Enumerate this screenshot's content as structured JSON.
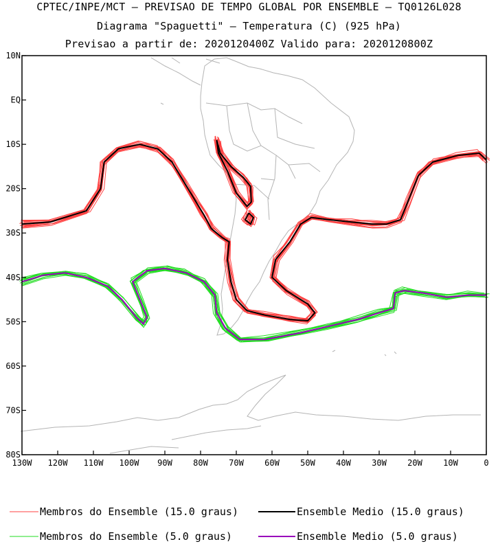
{
  "header": {
    "line1": "CPTEC/INPE/MCT – PREVISAO DE TEMPO GLOBAL POR ENSEMBLE – TQ0126L028",
    "line2": "Diagrama \"Spaguetti\" – Temperatura (C) (925 hPa)",
    "line3": "Previsao a partir de: 2020120400Z  Valido para: 2020120800Z"
  },
  "map": {
    "lat_labels": [
      "10N",
      "EQ",
      "10S",
      "20S",
      "30S",
      "40S",
      "50S",
      "60S",
      "70S",
      "80S"
    ],
    "lon_labels": [
      "130W",
      "120W",
      "110W",
      "100W",
      "90W",
      "80W",
      "70W",
      "60W",
      "50W",
      "40W",
      "30W",
      "20W",
      "10W",
      "0"
    ],
    "lat_range": [
      10,
      -80
    ],
    "lon_range": [
      -130,
      0
    ],
    "coastline_color": "#b4b4b4"
  },
  "legend": {
    "items": [
      {
        "label": "Membros do Ensemble (15.0 graus)",
        "color": "#ff4040"
      },
      {
        "label": "Ensemble Medio (15.0 graus)",
        "color": "#000000"
      },
      {
        "label": "Membros do Ensemble (5.0 graus)",
        "color": "#22dd22"
      },
      {
        "label": "Ensemble Medio (5.0 graus)",
        "color": "#9900bb"
      }
    ]
  }
}
